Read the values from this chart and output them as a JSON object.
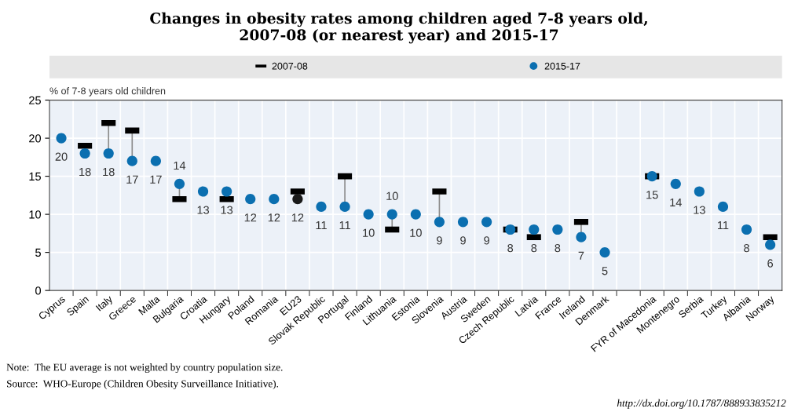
{
  "chart_data": {
    "type": "scatter",
    "title": "Changes in obesity rates among children aged 7-8 years old,\n2007-08 (or nearest year) and 2015-17",
    "ylabel": "% of 7-8 years old children",
    "categories": [
      "Cyprus",
      "Spain",
      "Italy",
      "Greece",
      "Malta",
      "Bulgaria",
      "Croatia",
      "Hungary",
      "Poland",
      "Romania",
      "EU23",
      "Slovak Republic",
      "Portugal",
      "Finland",
      "Lithuania",
      "Estonia",
      "Slovenia",
      "Austria",
      "Sweden",
      "Czech Republic",
      "Latvia",
      "France",
      "Ireland",
      "Denmark",
      null,
      "FYR of Macedonia",
      "Montenegro",
      "Serbia",
      "Turkey",
      "Albania",
      "Norway"
    ],
    "series": [
      {
        "name": "2007-08",
        "color": "#000000",
        "values": [
          null,
          19,
          22,
          21,
          null,
          12,
          null,
          12,
          null,
          null,
          13,
          null,
          15,
          null,
          8,
          null,
          13,
          null,
          null,
          8,
          7,
          null,
          9,
          null,
          null,
          15,
          null,
          null,
          null,
          null,
          7
        ]
      },
      {
        "name": "2015-17",
        "color": "#0b6fb0",
        "marker": "circle",
        "colors": [
          "#0b6fb0",
          "#0b6fb0",
          "#0b6fb0",
          "#0b6fb0",
          "#0b6fb0",
          "#0b6fb0",
          "#0b6fb0",
          "#0b6fb0",
          "#0b6fb0",
          "#0b6fb0",
          "#1a1a1a",
          "#0b6fb0",
          "#0b6fb0",
          "#0b6fb0",
          "#0b6fb0",
          "#0b6fb0",
          "#0b6fb0",
          "#0b6fb0",
          "#0b6fb0",
          "#0b6fb0",
          "#0b6fb0",
          "#0b6fb0",
          "#0b6fb0",
          "#0b6fb0",
          "#0b6fb0",
          "#0b6fb0",
          "#0b6fb0",
          "#0b6fb0",
          "#0b6fb0",
          "#0b6fb0",
          "#0b6fb0"
        ],
        "values": [
          20,
          18,
          18,
          17,
          17,
          14,
          13,
          13,
          12,
          12,
          12,
          11,
          11,
          10,
          10,
          10,
          9,
          9,
          9,
          8,
          8,
          8,
          7,
          5,
          null,
          15,
          14,
          13,
          11,
          8,
          6
        ],
        "value_labels": [
          "20",
          "18",
          "18",
          "17",
          "17",
          "14",
          "13",
          "13",
          "12",
          "12",
          "12",
          "11",
          "11",
          "10",
          "10",
          "10",
          "9",
          "9",
          "9",
          "8",
          "8",
          "8",
          "7",
          "5",
          null,
          "15",
          "14",
          "13",
          "11",
          "8",
          "6"
        ]
      }
    ],
    "ylim": [
      0,
      25
    ],
    "yticks": [
      0,
      5,
      10,
      15,
      20,
      25
    ],
    "grid": true,
    "legend": "top",
    "annotations": [
      "Note:  The EU average is not weighted by country population size.",
      "Source:  WHO-Europe (Children Obesity Surveillance Initiative).",
      "http://dx.doi.org/10.1787/888933835212"
    ]
  }
}
